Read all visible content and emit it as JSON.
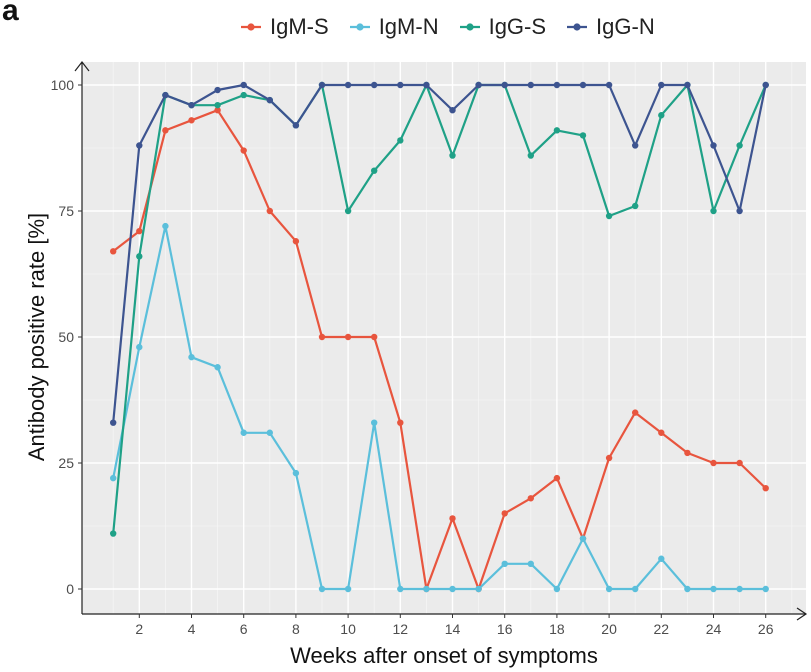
{
  "panel_label": "a",
  "colors": {
    "IgM-S": "#E8553E",
    "IgM-N": "#5BBFDB",
    "IgG-S": "#1FA187",
    "IgG-N": "#3D5490"
  },
  "chart_data": {
    "type": "line",
    "title": "",
    "xlabel": "Weeks after onset of symptoms",
    "ylabel": "Antibody positive rate [%]",
    "xlim": [
      0,
      26.5
    ],
    "ylim": [
      0,
      100
    ],
    "x_ticks": [
      2,
      4,
      6,
      8,
      10,
      12,
      14,
      16,
      18,
      20,
      22,
      24,
      26
    ],
    "y_ticks": [
      0,
      25,
      50,
      75,
      100
    ],
    "grid": true,
    "legend_position": "top",
    "x": [
      1,
      2,
      3,
      4,
      5,
      6,
      7,
      8,
      9,
      10,
      11,
      12,
      13,
      14,
      15,
      16,
      17,
      18,
      19,
      20,
      21,
      22,
      23,
      24,
      25,
      26
    ],
    "series": [
      {
        "name": "IgM-S",
        "values": [
          67,
          71,
          91,
          93,
          95,
          87,
          75,
          69,
          50,
          50,
          50,
          33,
          0,
          14,
          0,
          15,
          18,
          22,
          10,
          26,
          35,
          31,
          27,
          25,
          25,
          20
        ]
      },
      {
        "name": "IgM-N",
        "values": [
          22,
          48,
          72,
          46,
          44,
          31,
          31,
          23,
          0,
          0,
          33,
          0,
          0,
          0,
          0,
          5,
          5,
          0,
          10,
          0,
          0,
          6,
          0,
          0,
          0,
          0
        ]
      },
      {
        "name": "IgG-S",
        "values": [
          11,
          66,
          98,
          96,
          96,
          98,
          97,
          92,
          100,
          75,
          83,
          89,
          100,
          86,
          100,
          100,
          86,
          91,
          90,
          74,
          76,
          94,
          100,
          75,
          88,
          100
        ]
      },
      {
        "name": "IgG-N",
        "values": [
          33,
          88,
          98,
          96,
          99,
          100,
          97,
          92,
          100,
          100,
          100,
          100,
          100,
          95,
          100,
          100,
          100,
          100,
          100,
          100,
          88,
          100,
          100,
          88,
          75,
          100
        ]
      }
    ]
  }
}
